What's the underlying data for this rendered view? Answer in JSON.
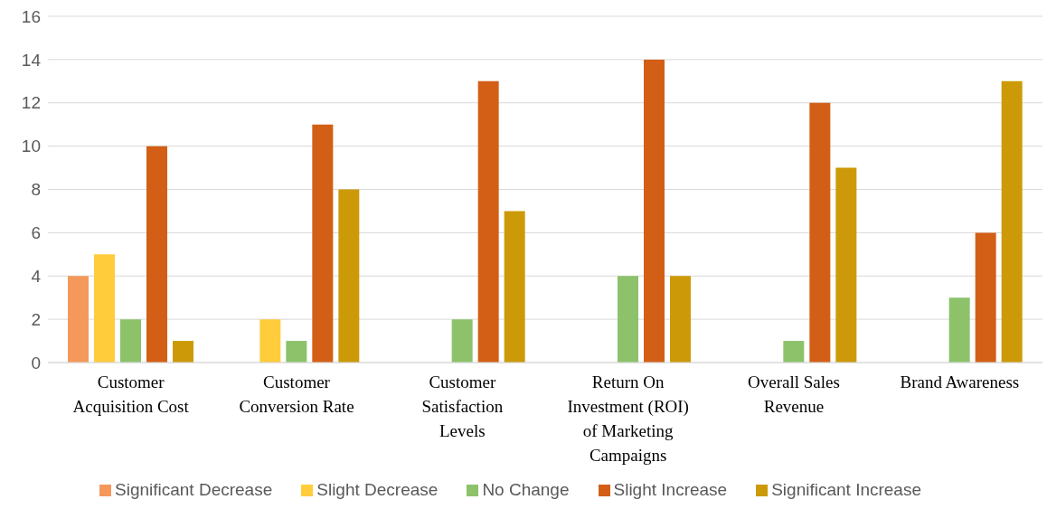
{
  "chart_data": {
    "type": "bar",
    "categories": [
      "Customer Acquisition Cost",
      "Customer Conversion Rate",
      "Customer Satisfaction Levels",
      "Return On Investment (ROI) of Marketing Campaigns",
      "Overall Sales Revenue",
      "Brand Awareness"
    ],
    "series": [
      {
        "name": "Significant Decrease",
        "color": "#f4995b",
        "values": [
          4,
          0,
          0,
          0,
          0,
          0
        ]
      },
      {
        "name": "Slight Decrease",
        "color": "#ffcc3c",
        "values": [
          5,
          2,
          0,
          0,
          0,
          0
        ]
      },
      {
        "name": "No Change",
        "color": "#8dc26b",
        "values": [
          2,
          1,
          2,
          4,
          1,
          3
        ]
      },
      {
        "name": "Slight Increase",
        "color": "#d35f17",
        "values": [
          10,
          11,
          13,
          14,
          12,
          6
        ]
      },
      {
        "name": "Significant Increase",
        "color": "#cc9a08",
        "values": [
          1,
          8,
          7,
          4,
          9,
          13
        ]
      }
    ],
    "ylim": [
      0,
      16
    ],
    "yticks": [
      0,
      2,
      4,
      6,
      8,
      10,
      12,
      14,
      16
    ],
    "grid": "y",
    "legend": "bottom"
  }
}
